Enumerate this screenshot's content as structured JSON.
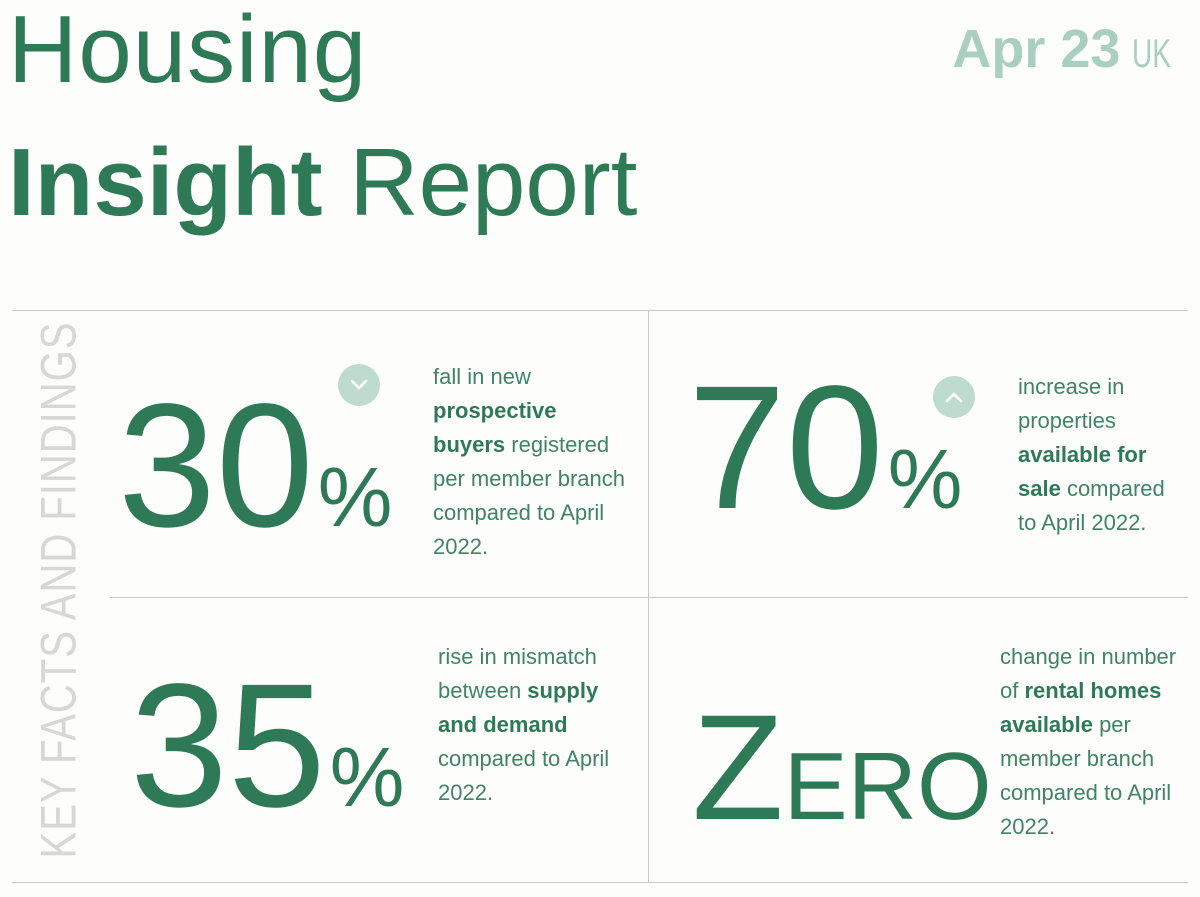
{
  "header": {
    "title_line1": "Housing",
    "title_bold": "Insight",
    "title_light": "Report",
    "date": "Apr 23",
    "country": "UK"
  },
  "side_label": "KEY FACTS AND FINDINGS",
  "facts": [
    {
      "value": "30",
      "unit": "%",
      "direction": "down",
      "text_before": "fall in new ",
      "text_bold": "prospective buyers",
      "text_after": " registered per member branch compared to April 2022."
    },
    {
      "value": "70",
      "unit": "%",
      "direction": "up",
      "text_before": "increase in properties ",
      "text_bold": "available for sale",
      "text_after": " compared to April 2022."
    },
    {
      "value": "35",
      "unit": "%",
      "text_before": "rise in mismatch between ",
      "text_bold": "supply and demand",
      "text_after": " compared to April 2022."
    },
    {
      "value_initial": "Z",
      "value_rest": "ERO",
      "text_before": "change in number of ",
      "text_bold": "rental homes available",
      "text_after": " per member branch compared to April 2022."
    }
  ]
}
